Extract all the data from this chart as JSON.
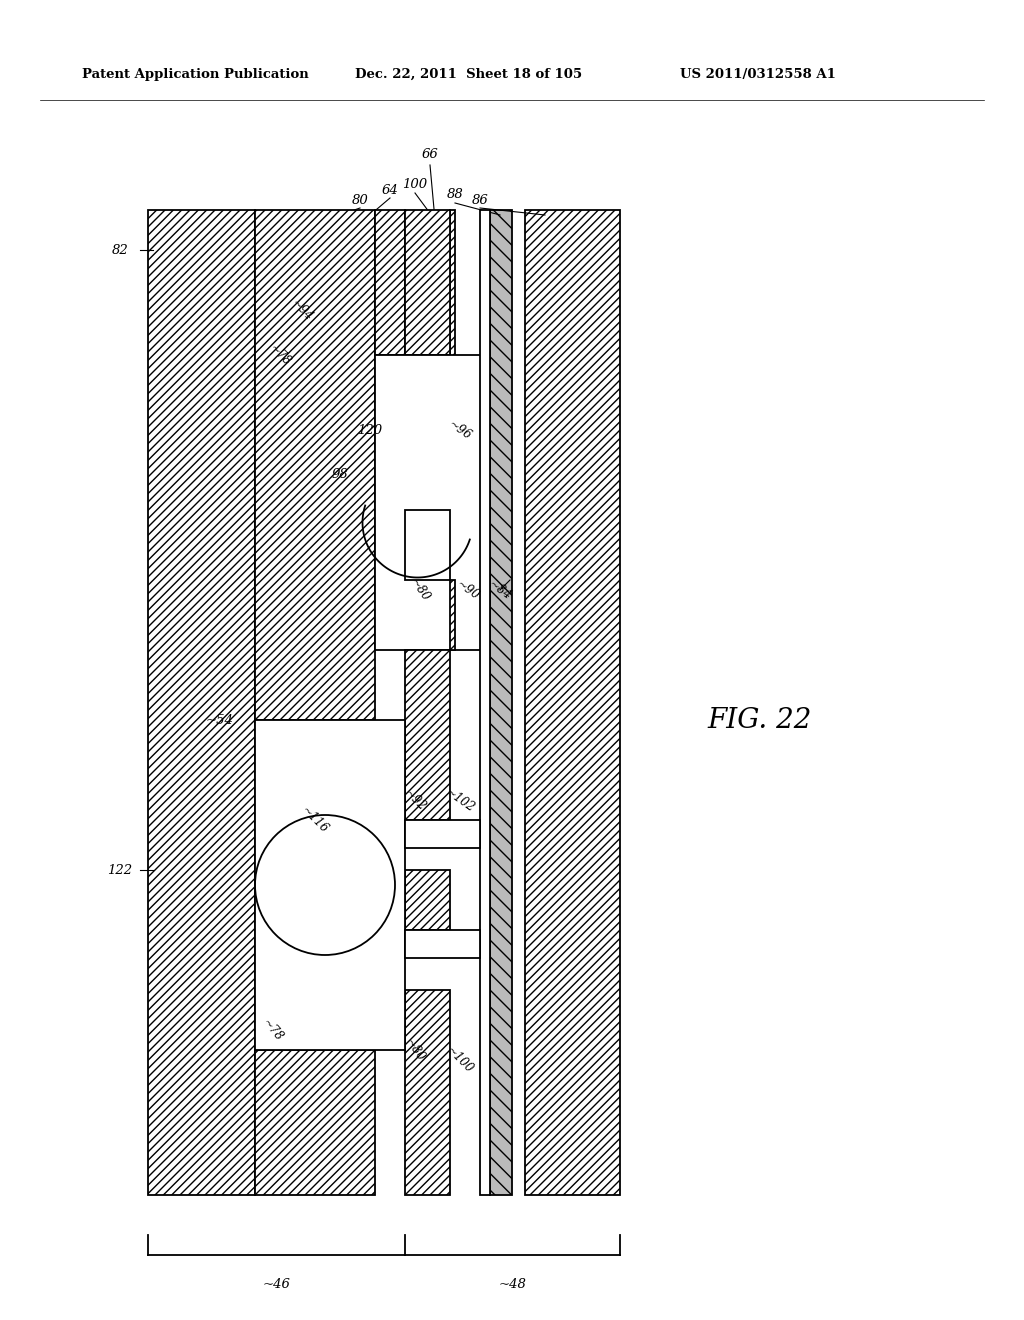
{
  "header_left": "Patent Application Publication",
  "header_mid": "Dec. 22, 2011  Sheet 18 of 105",
  "header_right": "US 2011/0312558 A1",
  "fig_label": "FIG. 22",
  "bg": "#ffffff"
}
